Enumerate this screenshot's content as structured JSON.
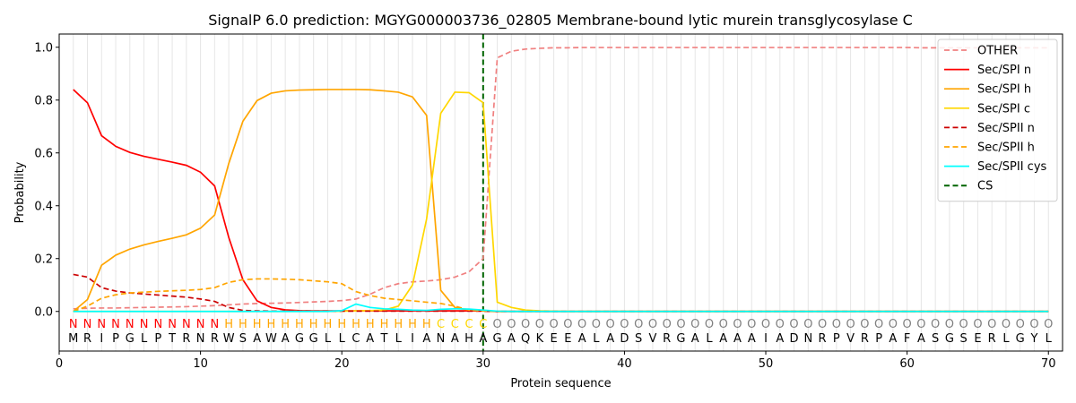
{
  "chart_data": {
    "type": "line",
    "title": "SignalP 6.0 prediction: MGYG000003736_02805 Membrane-bound lytic murein transglycosylase C",
    "xlabel": "Protein sequence",
    "ylabel": "Probability",
    "xlim": [
      0,
      71
    ],
    "ylim": [
      -0.15,
      1.05
    ],
    "xticks": [
      0,
      10,
      20,
      30,
      40,
      50,
      60,
      70
    ],
    "yticks": [
      0.0,
      0.2,
      0.4,
      0.6,
      0.8,
      1.0
    ],
    "ytick_labels": [
      "0.0",
      "0.2",
      "0.4",
      "0.6",
      "0.8",
      "1.0"
    ],
    "grid": "vertical lines at each position",
    "legend_position": "top-right",
    "sequence": [
      "M",
      "R",
      "I",
      "P",
      "G",
      "L",
      "P",
      "T",
      "R",
      "N",
      "R",
      "W",
      "S",
      "A",
      "W",
      "A",
      "G",
      "G",
      "L",
      "L",
      "C",
      "A",
      "T",
      "L",
      "I",
      "A",
      "N",
      "A",
      "H",
      "A",
      "G",
      "A",
      "Q",
      "K",
      "E",
      "E",
      "A",
      "L",
      "A",
      "D",
      "S",
      "V",
      "R",
      "G",
      "A",
      "L",
      "A",
      "A",
      "A",
      "I",
      "A",
      "D",
      "N",
      "R",
      "P",
      "V",
      "R",
      "P",
      "A",
      "F",
      "A",
      "S",
      "G",
      "S",
      "E",
      "R",
      "L",
      "G",
      "Y",
      "L"
    ],
    "labels": [
      "N",
      "N",
      "N",
      "N",
      "N",
      "N",
      "N",
      "N",
      "N",
      "N",
      "N",
      "H",
      "H",
      "H",
      "H",
      "H",
      "H",
      "H",
      "H",
      "H",
      "H",
      "H",
      "H",
      "H",
      "H",
      "H",
      "C",
      "C",
      "C",
      "C",
      "O",
      "O",
      "O",
      "O",
      "O",
      "O",
      "O",
      "O",
      "O",
      "O",
      "O",
      "O",
      "O",
      "O",
      "O",
      "O",
      "O",
      "O",
      "O",
      "O",
      "O",
      "O",
      "O",
      "O",
      "O",
      "O",
      "O",
      "O",
      "O",
      "O",
      "O",
      "O",
      "O",
      "O",
      "O",
      "O",
      "O",
      "O",
      "O",
      "O"
    ],
    "label_colors": {
      "N": "#ff0000",
      "H": "#ffa500",
      "C": "#ffd700",
      "O": "#808080"
    },
    "cs_position": 30,
    "series": [
      {
        "name": "OTHER",
        "color": "#f08080",
        "dash": "dashed",
        "values": [
          0.01,
          0.012,
          0.013,
          0.013,
          0.014,
          0.015,
          0.016,
          0.017,
          0.018,
          0.02,
          0.022,
          0.025,
          0.028,
          0.03,
          0.031,
          0.032,
          0.034,
          0.036,
          0.038,
          0.041,
          0.047,
          0.065,
          0.09,
          0.105,
          0.112,
          0.115,
          0.12,
          0.13,
          0.15,
          0.2,
          0.96,
          0.985,
          0.993,
          0.996,
          0.998,
          0.998,
          0.999,
          0.999,
          0.999,
          0.999,
          0.999,
          0.999,
          0.999,
          0.999,
          0.999,
          0.999,
          0.999,
          0.999,
          0.999,
          0.999,
          0.999,
          0.999,
          0.999,
          0.999,
          0.999,
          0.999,
          0.999,
          0.999,
          0.999,
          0.999,
          0.998,
          0.998,
          0.998,
          0.998,
          0.998,
          0.998,
          0.998,
          0.998,
          0.998,
          0.998
        ]
      },
      {
        "name": "Sec/SPI n",
        "color": "#ff0000",
        "dash": "solid",
        "values": [
          0.84,
          0.79,
          0.665,
          0.625,
          0.602,
          0.587,
          0.576,
          0.565,
          0.553,
          0.527,
          0.475,
          0.28,
          0.12,
          0.04,
          0.015,
          0.006,
          0.003,
          0.002,
          0.002,
          0.002,
          0.002,
          0.002,
          0.002,
          0.002,
          0.002,
          0.002,
          0.002,
          0.002,
          0.002,
          0.002,
          0.0,
          0.0,
          0.0,
          0.0,
          0.0,
          0.0,
          0.0,
          0.0,
          0.0,
          0.0,
          0.0,
          0.0,
          0.0,
          0.0,
          0.0,
          0.0,
          0.0,
          0.0,
          0.0,
          0.0,
          0.0,
          0.0,
          0.0,
          0.0,
          0.0,
          0.0,
          0.0,
          0.0,
          0.0,
          0.0,
          0.0,
          0.0,
          0.0,
          0.0,
          0.0,
          0.0,
          0.0,
          0.0,
          0.0,
          0.0
        ]
      },
      {
        "name": "Sec/SPI h",
        "color": "#ffa500",
        "dash": "solid",
        "values": [
          0.0,
          0.045,
          0.175,
          0.213,
          0.236,
          0.252,
          0.265,
          0.277,
          0.29,
          0.315,
          0.365,
          0.56,
          0.72,
          0.798,
          0.826,
          0.835,
          0.838,
          0.839,
          0.84,
          0.84,
          0.84,
          0.839,
          0.835,
          0.83,
          0.812,
          0.742,
          0.08,
          0.015,
          0.005,
          0.003,
          0.0,
          0.0,
          0.0,
          0.0,
          0.0,
          0.0,
          0.0,
          0.0,
          0.0,
          0.0,
          0.0,
          0.0,
          0.0,
          0.0,
          0.0,
          0.0,
          0.0,
          0.0,
          0.0,
          0.0,
          0.0,
          0.0,
          0.0,
          0.0,
          0.0,
          0.0,
          0.0,
          0.0,
          0.0,
          0.0,
          0.0,
          0.0,
          0.0,
          0.0,
          0.0,
          0.0,
          0.0,
          0.0,
          0.0,
          0.0
        ]
      },
      {
        "name": "Sec/SPI c",
        "color": "#ffd700",
        "dash": "solid",
        "values": [
          0.0,
          0.0,
          0.0,
          0.0,
          0.0,
          0.0,
          0.0,
          0.0,
          0.0,
          0.0,
          0.0,
          0.0,
          0.0,
          0.0,
          0.0,
          0.0,
          0.0,
          0.0,
          0.0,
          0.001,
          0.002,
          0.003,
          0.005,
          0.02,
          0.1,
          0.35,
          0.75,
          0.83,
          0.828,
          0.79,
          0.035,
          0.015,
          0.005,
          0.002,
          0.001,
          0.0,
          0.0,
          0.0,
          0.0,
          0.0,
          0.0,
          0.0,
          0.0,
          0.0,
          0.0,
          0.0,
          0.0,
          0.0,
          0.0,
          0.0,
          0.0,
          0.0,
          0.0,
          0.0,
          0.0,
          0.0,
          0.0,
          0.0,
          0.0,
          0.0,
          0.0,
          0.0,
          0.0,
          0.0,
          0.0,
          0.0,
          0.0,
          0.0,
          0.0,
          0.0
        ]
      },
      {
        "name": "Sec/SPII n",
        "color": "#cc0000",
        "dash": "dashed",
        "values": [
          0.14,
          0.13,
          0.09,
          0.077,
          0.07,
          0.066,
          0.062,
          0.058,
          0.054,
          0.047,
          0.038,
          0.015,
          0.004,
          0.002,
          0.001,
          0.001,
          0.001,
          0.001,
          0.001,
          0.001,
          0.001,
          0.001,
          0.001,
          0.001,
          0.001,
          0.001,
          0.001,
          0.001,
          0.001,
          0.001,
          0.0,
          0.0,
          0.0,
          0.0,
          0.0,
          0.0,
          0.0,
          0.0,
          0.0,
          0.0,
          0.0,
          0.0,
          0.0,
          0.0,
          0.0,
          0.0,
          0.0,
          0.0,
          0.0,
          0.0,
          0.0,
          0.0,
          0.0,
          0.0,
          0.0,
          0.0,
          0.0,
          0.0,
          0.0,
          0.0,
          0.0,
          0.0,
          0.0,
          0.0,
          0.0,
          0.0,
          0.0,
          0.0,
          0.0,
          0.0
        ]
      },
      {
        "name": "Sec/SPII h",
        "color": "#ffa500",
        "dash": "dashed",
        "values": [
          0.0,
          0.02,
          0.05,
          0.063,
          0.07,
          0.073,
          0.076,
          0.078,
          0.08,
          0.083,
          0.09,
          0.11,
          0.12,
          0.123,
          0.123,
          0.122,
          0.12,
          0.116,
          0.112,
          0.105,
          0.075,
          0.06,
          0.05,
          0.045,
          0.04,
          0.035,
          0.03,
          0.02,
          0.005,
          0.002,
          0.0,
          0.0,
          0.0,
          0.0,
          0.0,
          0.0,
          0.0,
          0.0,
          0.0,
          0.0,
          0.0,
          0.0,
          0.0,
          0.0,
          0.0,
          0.0,
          0.0,
          0.0,
          0.0,
          0.0,
          0.0,
          0.0,
          0.0,
          0.0,
          0.0,
          0.0,
          0.0,
          0.0,
          0.0,
          0.0,
          0.0,
          0.0,
          0.0,
          0.0,
          0.0,
          0.0,
          0.0,
          0.0,
          0.0,
          0.0
        ]
      },
      {
        "name": "Sec/SPII cys",
        "color": "#00ffff",
        "dash": "solid",
        "values": [
          0.0,
          0.0,
          0.0,
          0.0,
          0.0,
          0.0,
          0.0,
          0.0,
          0.0,
          0.0,
          0.0,
          0.0,
          0.0,
          0.0,
          0.0,
          0.0,
          0.0,
          0.0,
          0.0,
          0.003,
          0.028,
          0.015,
          0.01,
          0.008,
          0.005,
          0.004,
          0.008,
          0.01,
          0.009,
          0.005,
          0.001,
          0.0,
          0.0,
          0.0,
          0.0,
          0.0,
          0.0,
          0.0,
          0.0,
          0.0,
          0.0,
          0.0,
          0.0,
          0.0,
          0.0,
          0.0,
          0.0,
          0.0,
          0.0,
          0.0,
          0.0,
          0.0,
          0.0,
          0.0,
          0.0,
          0.0,
          0.0,
          0.0,
          0.0,
          0.0,
          0.0,
          0.0,
          0.0,
          0.0,
          0.0,
          0.0,
          0.0,
          0.0,
          0.0,
          0.0
        ]
      },
      {
        "name": "CS",
        "color": "#006400",
        "dash": "dashed",
        "vertical_at": 30
      }
    ]
  }
}
